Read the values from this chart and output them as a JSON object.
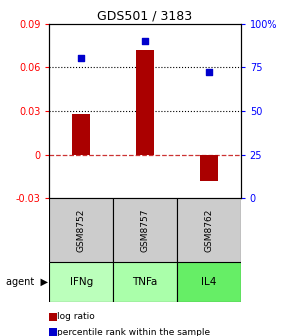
{
  "title": "GDS501 / 3183",
  "samples": [
    "GSM8752",
    "GSM8757",
    "GSM8762"
  ],
  "agents": [
    "IFNg",
    "TNFa",
    "IL4"
  ],
  "log_ratios": [
    0.028,
    0.072,
    -0.018
  ],
  "percentile_ranks": [
    80,
    90,
    72
  ],
  "ylim_left": [
    -0.03,
    0.09
  ],
  "ylim_right": [
    0,
    100
  ],
  "yticks_left": [
    -0.03,
    0,
    0.03,
    0.06,
    0.09
  ],
  "yticks_right": [
    0,
    25,
    50,
    75,
    100
  ],
  "ytick_labels_right": [
    "0",
    "25",
    "50",
    "75",
    "100%"
  ],
  "bar_color": "#AA0000",
  "dot_color": "#0000CC",
  "hline_0_color": "#CC3333",
  "sample_bg_color": "#CCCCCC",
  "agent_bg_color": "#AAFFAA",
  "bar_width": 0.28,
  "legend_bar_label": "log ratio",
  "legend_dot_label": "percentile rank within the sample"
}
